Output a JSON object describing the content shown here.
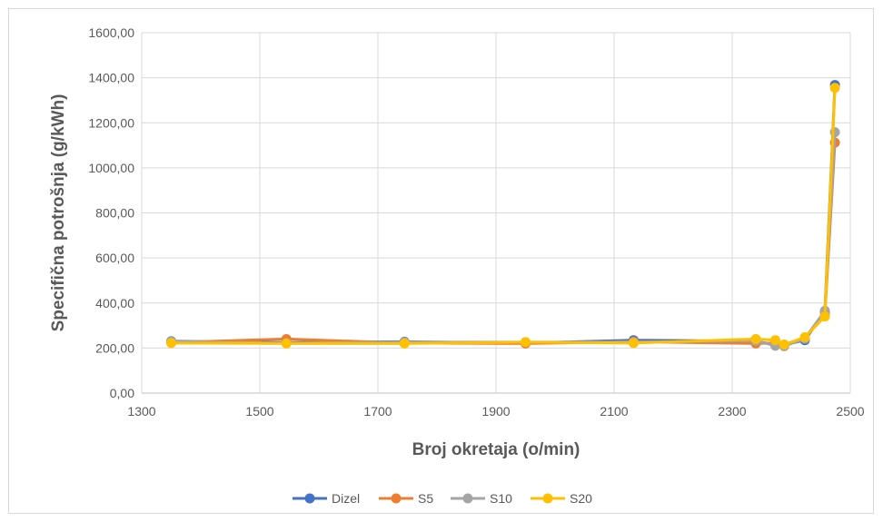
{
  "chart_data": {
    "type": "line",
    "title": "",
    "xlabel": "Broj okretaja (o/min)",
    "ylabel": "Specifična potrošnja (g/kWh)",
    "xlim": [
      1300,
      2500
    ],
    "ylim": [
      0,
      1600
    ],
    "x_ticks": [
      1300,
      1500,
      1700,
      1900,
      2100,
      2300,
      2500
    ],
    "x_tick_labels": [
      "1300",
      "1500",
      "1700",
      "1900",
      "2100",
      "2300",
      "2500"
    ],
    "y_ticks": [
      0,
      200,
      400,
      600,
      800,
      1000,
      1200,
      1400,
      1600
    ],
    "y_tick_labels": [
      "0,00",
      "200,00",
      "400,00",
      "600,00",
      "800,00",
      "1000,00",
      "1200,00",
      "1400,00",
      "1600,00"
    ],
    "grid": true,
    "legend_position": "bottom",
    "series": [
      {
        "name": "Dizel",
        "color": "#4472C4",
        "points": [
          [
            1350,
            230
          ],
          [
            1545,
            225
          ],
          [
            1745,
            228
          ],
          [
            1950,
            222
          ],
          [
            2133,
            235
          ],
          [
            2340,
            230
          ],
          [
            2373,
            215
          ],
          [
            2388,
            213
          ],
          [
            2423,
            235
          ],
          [
            2457,
            360
          ],
          [
            2474,
            1368
          ]
        ]
      },
      {
        "name": "S5",
        "color": "#ED7D31",
        "points": [
          [
            1350,
            225
          ],
          [
            1545,
            240
          ],
          [
            1745,
            222
          ],
          [
            1950,
            220
          ],
          [
            2133,
            228
          ],
          [
            2340,
            220
          ],
          [
            2373,
            222
          ],
          [
            2388,
            215
          ],
          [
            2423,
            245
          ],
          [
            2457,
            345
          ],
          [
            2474,
            1112
          ]
        ]
      },
      {
        "name": "S10",
        "color": "#A5A5A5",
        "points": [
          [
            1350,
            228
          ],
          [
            1545,
            222
          ],
          [
            1745,
            226
          ],
          [
            1950,
            226
          ],
          [
            2133,
            226
          ],
          [
            2340,
            232
          ],
          [
            2373,
            210
          ],
          [
            2388,
            208
          ],
          [
            2423,
            242
          ],
          [
            2457,
            365
          ],
          [
            2474,
            1158
          ]
        ]
      },
      {
        "name": "S20",
        "color": "#FFC000",
        "points": [
          [
            1350,
            222
          ],
          [
            1545,
            220
          ],
          [
            1745,
            220
          ],
          [
            1950,
            226
          ],
          [
            2133,
            222
          ],
          [
            2340,
            240
          ],
          [
            2373,
            235
          ],
          [
            2388,
            215
          ],
          [
            2423,
            248
          ],
          [
            2457,
            340
          ],
          [
            2474,
            1355
          ]
        ]
      }
    ]
  }
}
